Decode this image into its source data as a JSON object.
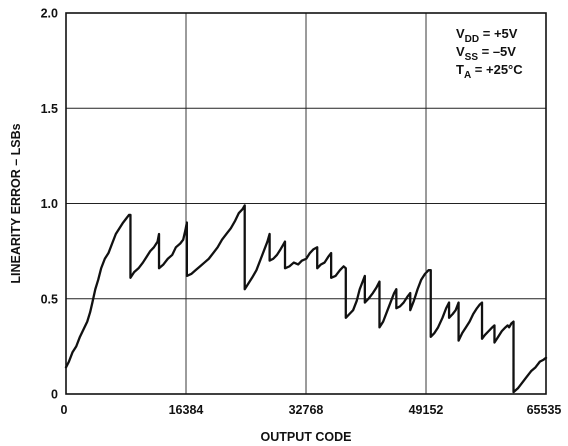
{
  "chart_data": {
    "type": "line",
    "title": "",
    "xlabel": "OUTPUT CODE",
    "ylabel": "LINEARITY ERROR – LSBs",
    "xlim": [
      0,
      65535
    ],
    "ylim": [
      0,
      2.0
    ],
    "x_ticks": [
      "0",
      "16384",
      "32768",
      "49152",
      "65535"
    ],
    "x_tick_values": [
      0,
      16384,
      32768,
      49152,
      65535
    ],
    "y_ticks": [
      "0",
      "0.5",
      "1.0",
      "1.5",
      "2.0"
    ],
    "y_tick_values": [
      0,
      0.5,
      1.0,
      1.5,
      2.0
    ],
    "grid": true,
    "conditions": [
      {
        "prefix": "V",
        "sub": "DD",
        "suffix": " = +5V"
      },
      {
        "prefix": "V",
        "sub": "SS",
        "suffix": " = –5V"
      },
      {
        "prefix": "T",
        "sub": "A",
        "suffix": " = +25°C"
      }
    ],
    "conditions_position": "top-right",
    "line_color": "#111111",
    "series": [
      {
        "points": [
          [
            0,
            0.14
          ],
          [
            400,
            0.17
          ],
          [
            900,
            0.22
          ],
          [
            1400,
            0.25
          ],
          [
            1900,
            0.3
          ],
          [
            2400,
            0.34
          ],
          [
            2900,
            0.38
          ],
          [
            3300,
            0.43
          ],
          [
            3600,
            0.48
          ],
          [
            4000,
            0.55
          ],
          [
            4400,
            0.6
          ],
          [
            4800,
            0.66
          ],
          [
            5300,
            0.71
          ],
          [
            5800,
            0.74
          ],
          [
            6300,
            0.79
          ],
          [
            6800,
            0.84
          ],
          [
            7300,
            0.87
          ],
          [
            7800,
            0.9
          ],
          [
            8200,
            0.92
          ],
          [
            8600,
            0.94
          ],
          [
            8800,
            0.94
          ],
          [
            8800,
            0.61
          ],
          [
            9300,
            0.64
          ],
          [
            9900,
            0.66
          ],
          [
            10500,
            0.69
          ],
          [
            11000,
            0.72
          ],
          [
            11500,
            0.75
          ],
          [
            12000,
            0.77
          ],
          [
            12500,
            0.8
          ],
          [
            12700,
            0.84
          ],
          [
            12700,
            0.66
          ],
          [
            13300,
            0.68
          ],
          [
            13900,
            0.71
          ],
          [
            14500,
            0.73
          ],
          [
            15000,
            0.77
          ],
          [
            15600,
            0.79
          ],
          [
            16000,
            0.81
          ],
          [
            16300,
            0.86
          ],
          [
            16500,
            0.9
          ],
          [
            16500,
            0.62
          ],
          [
            17100,
            0.63
          ],
          [
            17700,
            0.65
          ],
          [
            18300,
            0.67
          ],
          [
            18900,
            0.69
          ],
          [
            19500,
            0.71
          ],
          [
            20100,
            0.74
          ],
          [
            20700,
            0.77
          ],
          [
            21300,
            0.81
          ],
          [
            21900,
            0.84
          ],
          [
            22500,
            0.87
          ],
          [
            23100,
            0.91
          ],
          [
            23600,
            0.95
          ],
          [
            24100,
            0.97
          ],
          [
            24400,
            0.99
          ],
          [
            24400,
            0.55
          ],
          [
            24900,
            0.58
          ],
          [
            25400,
            0.61
          ],
          [
            26000,
            0.65
          ],
          [
            26600,
            0.71
          ],
          [
            27100,
            0.76
          ],
          [
            27500,
            0.8
          ],
          [
            27800,
            0.84
          ],
          [
            27800,
            0.7
          ],
          [
            28300,
            0.71
          ],
          [
            28800,
            0.73
          ],
          [
            29300,
            0.76
          ],
          [
            29600,
            0.78
          ],
          [
            29900,
            0.8
          ],
          [
            29900,
            0.66
          ],
          [
            30500,
            0.67
          ],
          [
            31100,
            0.69
          ],
          [
            31700,
            0.68
          ],
          [
            32200,
            0.7
          ],
          [
            32800,
            0.71
          ],
          [
            33300,
            0.74
          ],
          [
            33800,
            0.76
          ],
          [
            34300,
            0.77
          ],
          [
            34300,
            0.66
          ],
          [
            34800,
            0.68
          ],
          [
            35300,
            0.69
          ],
          [
            35800,
            0.72
          ],
          [
            36200,
            0.74
          ],
          [
            36200,
            0.61
          ],
          [
            36800,
            0.62
          ],
          [
            37400,
            0.65
          ],
          [
            37900,
            0.67
          ],
          [
            38200,
            0.66
          ],
          [
            38200,
            0.4
          ],
          [
            38700,
            0.42
          ],
          [
            39200,
            0.44
          ],
          [
            39700,
            0.49
          ],
          [
            40100,
            0.55
          ],
          [
            40500,
            0.59
          ],
          [
            40800,
            0.62
          ],
          [
            40800,
            0.48
          ],
          [
            41300,
            0.5
          ],
          [
            41900,
            0.53
          ],
          [
            42400,
            0.56
          ],
          [
            42800,
            0.59
          ],
          [
            42800,
            0.35
          ],
          [
            43300,
            0.38
          ],
          [
            43800,
            0.43
          ],
          [
            44300,
            0.48
          ],
          [
            44800,
            0.53
          ],
          [
            45100,
            0.55
          ],
          [
            45100,
            0.45
          ],
          [
            45600,
            0.46
          ],
          [
            46100,
            0.48
          ],
          [
            46600,
            0.51
          ],
          [
            47000,
            0.53
          ],
          [
            47000,
            0.44
          ],
          [
            47500,
            0.49
          ],
          [
            48000,
            0.55
          ],
          [
            48500,
            0.6
          ],
          [
            49000,
            0.63
          ],
          [
            49500,
            0.65
          ],
          [
            49800,
            0.65
          ],
          [
            49800,
            0.3
          ],
          [
            50300,
            0.32
          ],
          [
            50800,
            0.35
          ],
          [
            51400,
            0.4
          ],
          [
            51900,
            0.45
          ],
          [
            52300,
            0.48
          ],
          [
            52300,
            0.4
          ],
          [
            52800,
            0.42
          ],
          [
            53200,
            0.44
          ],
          [
            53600,
            0.48
          ],
          [
            53600,
            0.28
          ],
          [
            54100,
            0.32
          ],
          [
            54600,
            0.35
          ],
          [
            55100,
            0.38
          ],
          [
            55600,
            0.42
          ],
          [
            56100,
            0.45
          ],
          [
            56500,
            0.47
          ],
          [
            56800,
            0.48
          ],
          [
            56800,
            0.29
          ],
          [
            57200,
            0.31
          ],
          [
            57700,
            0.33
          ],
          [
            58200,
            0.35
          ],
          [
            58500,
            0.36
          ],
          [
            58500,
            0.27
          ],
          [
            59000,
            0.3
          ],
          [
            59500,
            0.33
          ],
          [
            60000,
            0.35
          ],
          [
            60300,
            0.36
          ],
          [
            60500,
            0.35
          ],
          [
            60800,
            0.37
          ],
          [
            61100,
            0.38
          ],
          [
            61100,
            0.01
          ],
          [
            61700,
            0.03
          ],
          [
            62300,
            0.06
          ],
          [
            62900,
            0.09
          ],
          [
            63500,
            0.12
          ],
          [
            64100,
            0.14
          ],
          [
            64700,
            0.17
          ],
          [
            65200,
            0.18
          ],
          [
            65535,
            0.19
          ]
        ]
      }
    ]
  }
}
